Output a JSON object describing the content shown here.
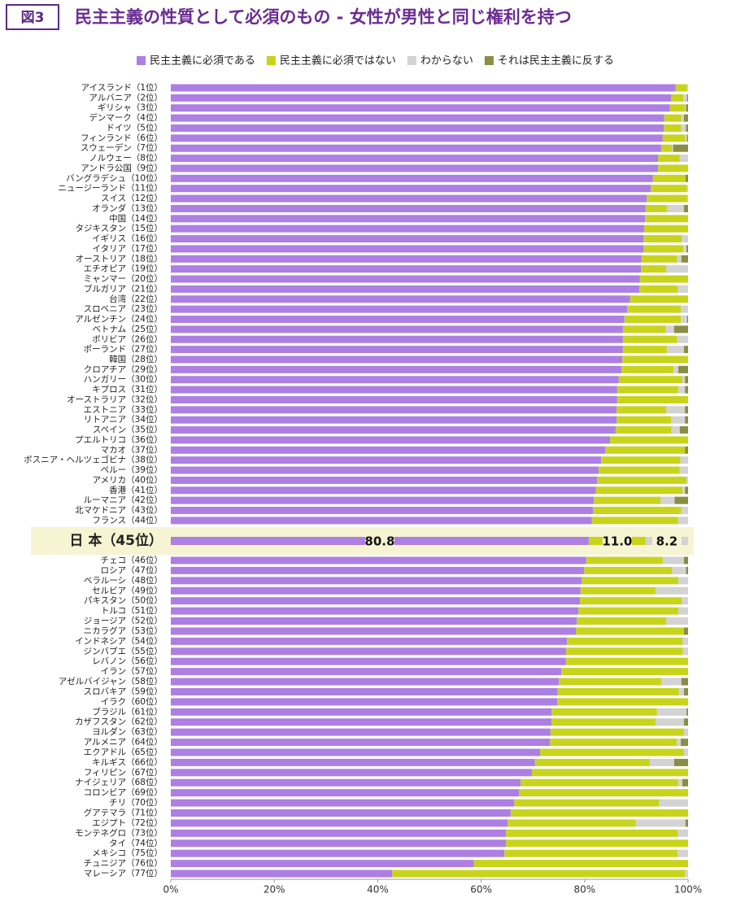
{
  "chart_data": {
    "type": "stacked_barh",
    "figure_label": "図3",
    "title": "民主主義の性質として必須のもの - 女性が男性と同じ権利を持つ",
    "categories": [
      "アイスランド（1位）",
      "アルバニア（2位）",
      "ギリシャ（3位）",
      "デンマーク（4位）",
      "ドイツ（5位）",
      "フィンランド（6位）",
      "スウェーデン（7位）",
      "ノルウェー（8位）",
      "アンドラ公国（9位）",
      "バングラデシュ（10位）",
      "ニュージーランド（11位）",
      "スイス（12位）",
      "オランダ（13位）",
      "中国（14位）",
      "タジキスタン（15位）",
      "イギリス（16位）",
      "イタリア（17位）",
      "オーストリア（18位）",
      "エチオピア（19位）",
      "ミャンマー（20位）",
      "ブルガリア（21位）",
      "台湾（22位）",
      "スロベニア（23位）",
      "アルゼンチン（24位）",
      "ベトナム（25位）",
      "ボリビア（26位）",
      "ポーランド（27位）",
      "韓国（28位）",
      "クロアチア（29位）",
      "ハンガリー（30位）",
      "キプロス（31位）",
      "オーストラリア（32位）",
      "エストニア（33位）",
      "リトアニア（34位）",
      "スペイン（35位）",
      "プエルトリコ（36位）",
      "マカオ（37位）",
      "ボスニア・ヘルツェゴビナ（38位）",
      "ペルー（39位）",
      "アメリカ（40位）",
      "香港（41位）",
      "ルーマニア（42位）",
      "北マケドニア（43位）",
      "フランス（44位）",
      "日 本（45位）",
      "チェコ（46位）",
      "ロシア（47位）",
      "ベラルーシ（48位）",
      "セルビア（49位）",
      "パキスタン（50位）",
      "トルコ（51位）",
      "ジョージア（52位）",
      "ニカラグア（53位）",
      "インドネシア（54位）",
      "ジンバブエ（55位）",
      "レバノン（56位）",
      "イラン（57位）",
      "アゼルバイジャン（58位）",
      "スロバキア（59位）",
      "イラク（60位）",
      "ブラジル（61位）",
      "カザフスタン（62位）",
      "ヨルダン（63位）",
      "アルメニア（64位）",
      "エクアドル（65位）",
      "キルギス（66位）",
      "フィリピン（67位）",
      "ナイジェリア（68位）",
      "コロンビア（69位）",
      "チリ（70位）",
      "グアテマラ（71位）",
      "エジプト（72位）",
      "モンテネグロ（73位）",
      "タイ（74位）",
      "メキシコ（75位）",
      "チュニジア（76位）",
      "マレーシア（77位）"
    ],
    "highlight_index": 44,
    "series": [
      {
        "name": "民主主義に必須である",
        "color": "#ad7fe3",
        "values": [
          97.6,
          96.7,
          96.5,
          95.4,
          95.3,
          95.1,
          94.8,
          94.2,
          94.2,
          93.2,
          92.8,
          92.0,
          91.8,
          91.7,
          91.5,
          91.4,
          91.4,
          91.0,
          90.9,
          90.7,
          90.6,
          88.8,
          88.2,
          87.7,
          87.4,
          87.4,
          87.4,
          87.3,
          87.1,
          86.6,
          86.3,
          86.3,
          86.2,
          86.2,
          86.0,
          84.9,
          84.0,
          83.2,
          82.7,
          82.4,
          82.2,
          81.8,
          81.6,
          81.4,
          80.8,
          80.3,
          79.9,
          79.4,
          79.2,
          79.1,
          78.8,
          78.5,
          78.3,
          76.6,
          76.4,
          76.4,
          75.5,
          75.0,
          74.8,
          74.7,
          73.6,
          73.6,
          73.4,
          73.3,
          71.4,
          70.4,
          69.8,
          67.6,
          67.3,
          66.4,
          65.7,
          65.1,
          64.8,
          64.8,
          64.5,
          58.6,
          42.8
        ],
        "value_labels": [
          null,
          null,
          null,
          null,
          null,
          null,
          null,
          null,
          null,
          null,
          null,
          null,
          null,
          null,
          null,
          null,
          null,
          null,
          null,
          null,
          null,
          null,
          null,
          null,
          null,
          null,
          null,
          null,
          null,
          null,
          null,
          null,
          null,
          null,
          null,
          null,
          null,
          null,
          null,
          null,
          null,
          null,
          null,
          null,
          "80.8",
          null,
          null,
          null,
          null,
          null,
          null,
          null,
          null,
          null,
          null,
          null,
          null,
          null,
          null,
          null,
          null,
          null,
          null,
          null,
          null,
          null,
          null,
          null,
          null,
          null,
          null,
          null,
          null,
          null,
          null,
          null,
          null
        ]
      },
      {
        "name": "民主主義に必須ではない",
        "color": "#c8d41c",
        "values": [
          2.2,
          2.4,
          2.9,
          3.3,
          3.4,
          4.4,
          2.1,
          4.2,
          5.8,
          6.3,
          7.0,
          7.9,
          4.1,
          8.3,
          8.5,
          7.4,
          7.7,
          6.9,
          4.9,
          9.3,
          7.4,
          11.2,
          10.4,
          10.9,
          8.3,
          10.5,
          8.5,
          12.7,
          10.1,
          12.3,
          11.8,
          13.7,
          9.6,
          10.5,
          10.8,
          15.1,
          15.4,
          15.3,
          15.7,
          17.3,
          16.7,
          12.9,
          17.1,
          16.7,
          11.0,
          14.8,
          17.0,
          18.7,
          14.5,
          19.7,
          19.3,
          17.3,
          20.9,
          22.3,
          22.6,
          23.6,
          24.5,
          19.8,
          23.4,
          25.3,
          20.4,
          20.1,
          25.8,
          24.5,
          27.8,
          22.2,
          30.2,
          30.5,
          32.7,
          28.0,
          34.3,
          24.8,
          33.2,
          35.2,
          33.5,
          41.4,
          56.6
        ],
        "value_labels": [
          null,
          null,
          null,
          null,
          null,
          null,
          null,
          null,
          null,
          null,
          null,
          null,
          null,
          null,
          null,
          null,
          null,
          null,
          null,
          null,
          null,
          null,
          null,
          null,
          null,
          null,
          null,
          null,
          null,
          null,
          null,
          null,
          null,
          null,
          null,
          null,
          null,
          null,
          null,
          null,
          null,
          null,
          null,
          null,
          "11.0",
          null,
          null,
          null,
          null,
          null,
          null,
          null,
          null,
          null,
          null,
          null,
          null,
          null,
          null,
          null,
          null,
          null,
          null,
          null,
          null,
          null,
          null,
          null,
          null,
          null,
          null,
          null,
          null,
          null,
          null,
          null,
          null
        ]
      },
      {
        "name": "わからない",
        "color": "#d3d3d3",
        "values": [
          0.2,
          0.7,
          0.2,
          0.5,
          0.9,
          0.3,
          0.2,
          1.6,
          0,
          0,
          0.2,
          0.1,
          3.3,
          0,
          0,
          1.2,
          0.6,
          0.8,
          4.2,
          0,
          2.0,
          0,
          1.4,
          1.2,
          1.6,
          2.1,
          3.3,
          0,
          0.9,
          0.5,
          1.3,
          0,
          3.6,
          2.7,
          1.6,
          0,
          0,
          1.5,
          1.6,
          0.3,
          0.5,
          2.7,
          1.3,
          1.9,
          8.2,
          4.1,
          2.7,
          1.9,
          6.3,
          1.2,
          1.9,
          4.2,
          0,
          1.1,
          1.0,
          0,
          0,
          3.9,
          1.0,
          0,
          5.7,
          5.5,
          0.8,
          0.8,
          0.8,
          4.7,
          0,
          0.8,
          0,
          5.6,
          0,
          9.6,
          2.0,
          0,
          2.0,
          0,
          0.6
        ],
        "value_labels": [
          null,
          null,
          null,
          null,
          null,
          null,
          null,
          null,
          null,
          null,
          null,
          null,
          null,
          null,
          null,
          null,
          null,
          null,
          null,
          null,
          null,
          null,
          null,
          null,
          null,
          null,
          null,
          null,
          null,
          null,
          null,
          null,
          null,
          null,
          null,
          null,
          null,
          null,
          null,
          null,
          null,
          null,
          null,
          null,
          "8.2",
          null,
          null,
          null,
          null,
          null,
          null,
          null,
          null,
          null,
          null,
          null,
          null,
          null,
          null,
          null,
          null,
          null,
          null,
          null,
          null,
          null,
          null,
          null,
          null,
          null,
          null,
          null,
          null,
          null,
          null,
          null,
          null
        ]
      },
      {
        "name": "それは民主主義に反する",
        "color": "#8a8d45",
        "values": [
          0,
          0.2,
          0.4,
          0.8,
          0.4,
          0.2,
          2.9,
          0,
          0,
          0.5,
          0,
          0,
          0.8,
          0,
          0,
          0,
          0.3,
          1.3,
          0,
          0,
          0,
          0,
          0,
          0.2,
          2.7,
          0,
          0.8,
          0,
          1.9,
          0.6,
          0.6,
          0,
          0.6,
          0.6,
          1.6,
          0,
          0.6,
          0,
          0,
          0,
          0.6,
          2.6,
          0,
          0,
          0,
          0.8,
          0.4,
          0,
          0,
          0,
          0,
          0,
          0.8,
          0,
          0,
          0,
          0,
          1.3,
          0.8,
          0,
          0.3,
          0.8,
          0,
          1.4,
          0,
          2.7,
          0,
          1.1,
          0,
          0,
          0,
          0.5,
          0,
          0,
          0,
          0,
          0
        ]
      }
    ],
    "xlim": [
      0,
      100
    ],
    "xticks": [
      {
        "value": 0,
        "label": "0%"
      },
      {
        "value": 20,
        "label": "20%"
      },
      {
        "value": 40,
        "label": "40%"
      },
      {
        "value": 60,
        "label": "60%"
      },
      {
        "value": 80,
        "label": "80%"
      },
      {
        "value": 100,
        "label": "100%"
      }
    ],
    "legend": "top-right"
  }
}
